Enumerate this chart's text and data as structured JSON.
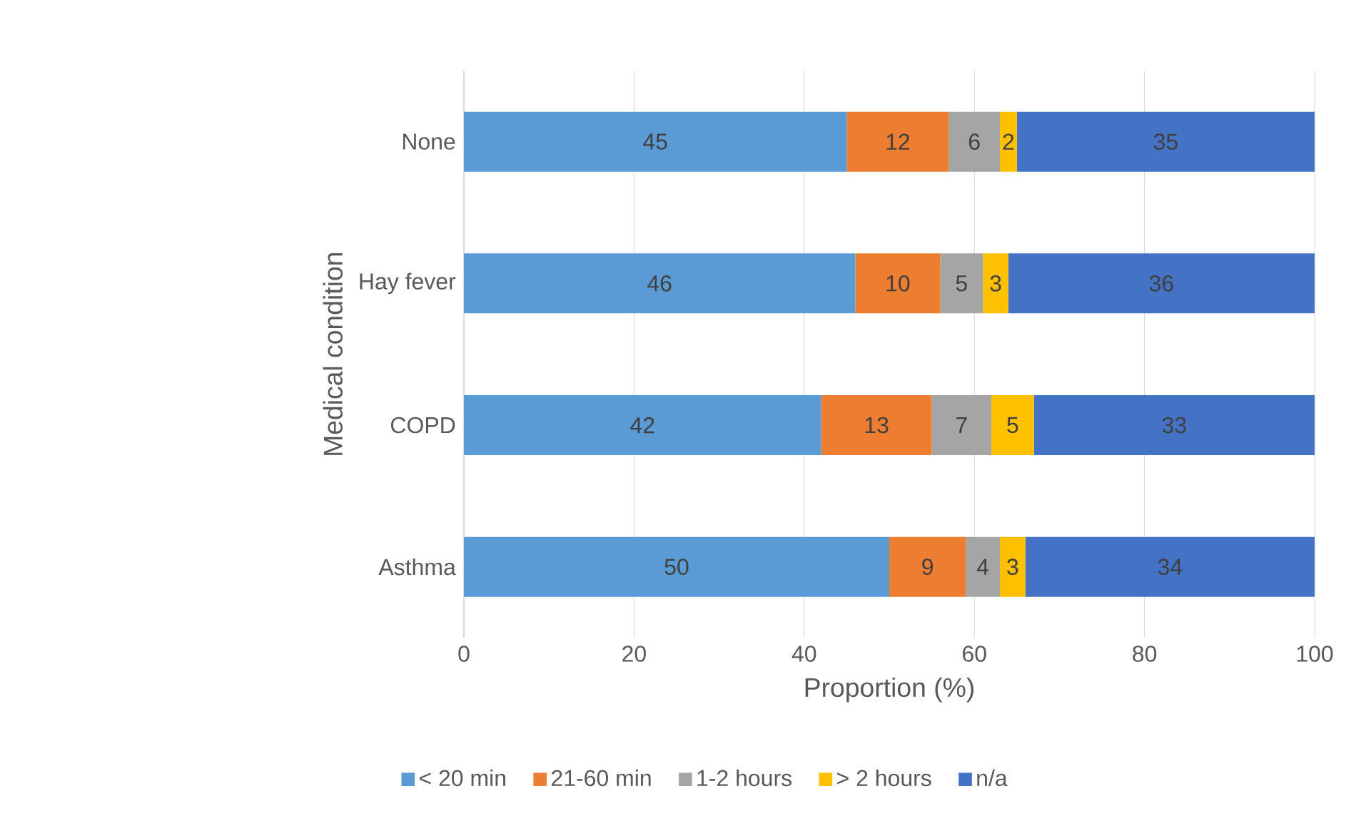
{
  "chart_data": {
    "type": "bar",
    "orientation": "horizontal",
    "stacked": true,
    "categories": [
      "None",
      "Hay fever",
      "COPD",
      "Asthma"
    ],
    "series": [
      {
        "name": "< 20 min",
        "color": "#5b9bd5",
        "values": [
          45,
          46,
          42,
          50
        ]
      },
      {
        "name": "21-60 min",
        "color": "#ed7d31",
        "values": [
          12,
          10,
          13,
          9
        ]
      },
      {
        "name": "1-2 hours",
        "color": "#a5a5a5",
        "values": [
          6,
          5,
          7,
          4
        ]
      },
      {
        "name": "> 2 hours",
        "color": "#ffc000",
        "values": [
          2,
          3,
          5,
          3
        ]
      },
      {
        "name": "n/a",
        "color": "#4472c4",
        "values": [
          35,
          36,
          33,
          34
        ]
      }
    ],
    "xlabel": "Proportion (%)",
    "ylabel": "Medical condition",
    "xlim": [
      0,
      100
    ],
    "xticks": [
      0,
      20,
      40,
      60,
      80,
      100
    ],
    "grid": "x",
    "legend": "bottom",
    "data_labels": true
  }
}
